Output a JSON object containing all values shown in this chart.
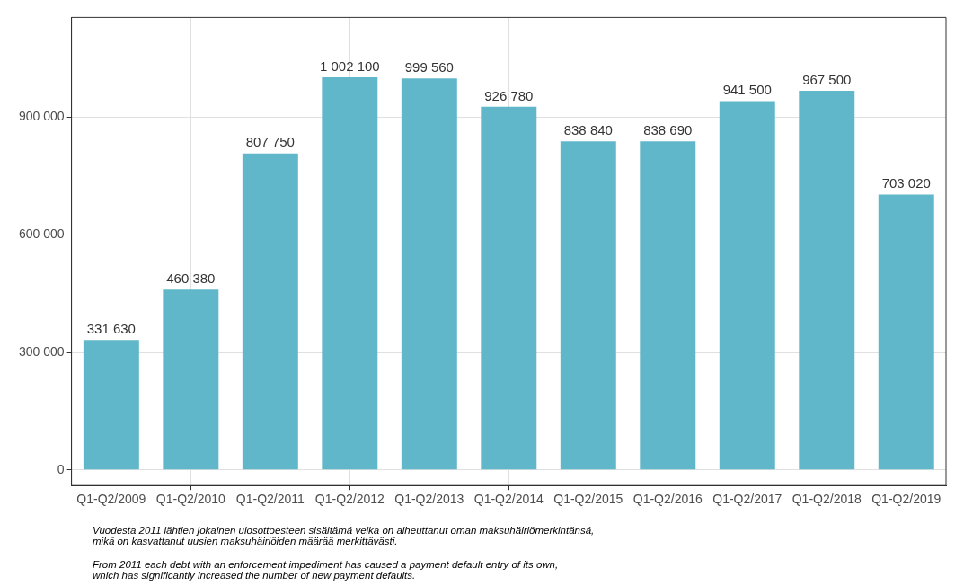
{
  "chart_data": {
    "type": "bar",
    "categories": [
      "Q1-Q2/2009",
      "Q1-Q2/2010",
      "Q1-Q2/2011",
      "Q1-Q2/2012",
      "Q1-Q2/2013",
      "Q1-Q2/2014",
      "Q1-Q2/2015",
      "Q1-Q2/2016",
      "Q1-Q2/2017",
      "Q1-Q2/2018",
      "Q1-Q2/2019"
    ],
    "values": [
      331630,
      460380,
      807750,
      1002100,
      999560,
      926780,
      838840,
      838690,
      941500,
      967500,
      703020
    ],
    "color": "#5fb7c9",
    "ylim": [
      -40000,
      1155000
    ],
    "yticks": [
      {
        "value": 0,
        "label": "0"
      },
      {
        "value": 300000,
        "label": "300 000"
      },
      {
        "value": 600000,
        "label": "600 000"
      },
      {
        "value": 900000,
        "label": "900 000"
      }
    ],
    "grid": true,
    "data_labels": true,
    "annotations": [
      "Vuodesta 2011 lähtien jokainen ulosottoesteen sisältämä velka on aiheuttanut oman maksuhäiriömerkintänsä,\nmikä on kasvattanut uusien maksuhäiriöiden määrää merkittävästi.",
      "From 2011 each debt with an enforcement impediment has caused a payment default entry of its own,\nwhich has significantly increased the number of new payment defaults."
    ]
  }
}
